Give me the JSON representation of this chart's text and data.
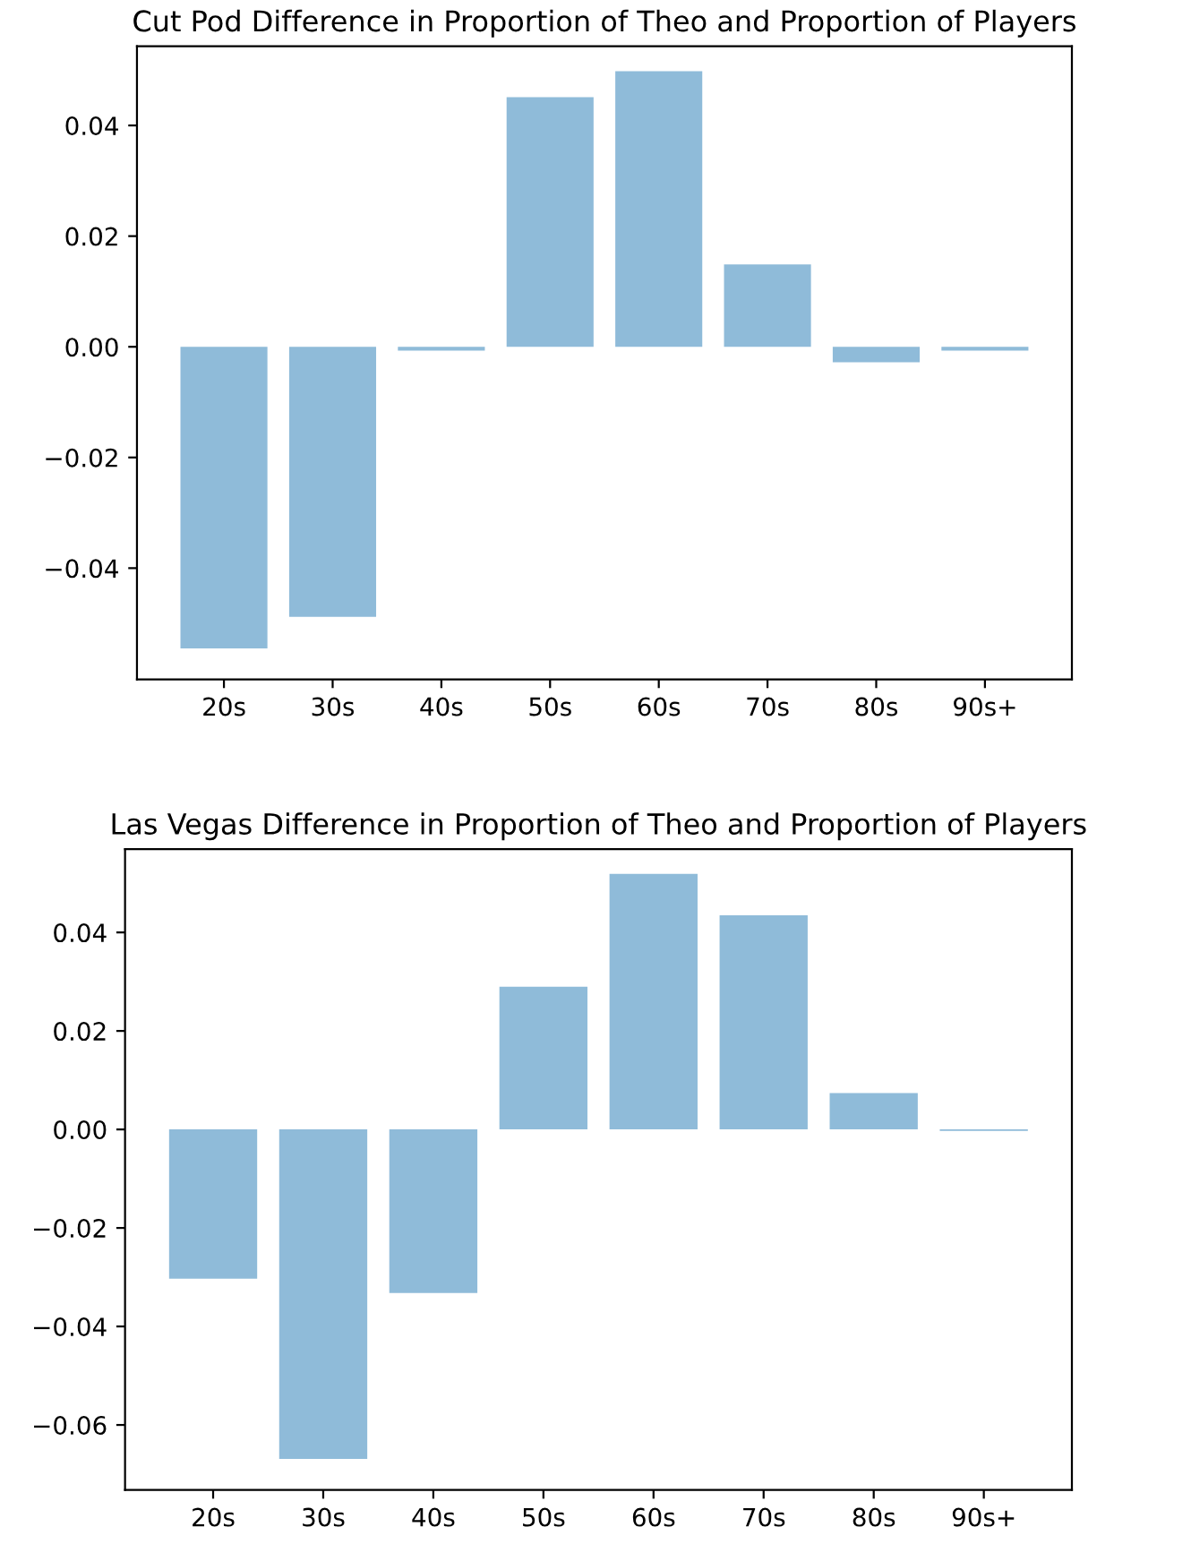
{
  "chart_data": [
    {
      "type": "bar",
      "title": "Cut Pod Difference in Proportion of Theo and Proportion of Players",
      "categories": [
        "20s",
        "30s",
        "40s",
        "50s",
        "60s",
        "70s",
        "80s",
        "90s+"
      ],
      "values": [
        -0.0545,
        -0.0488,
        -0.0007,
        0.0451,
        0.0498,
        0.0149,
        -0.0028,
        -0.0007
      ],
      "color": "#8fbbd9",
      "ylim": [
        -0.0601,
        0.0543
      ],
      "yticks": [
        {
          "value": -0.04,
          "label": "−0.04"
        },
        {
          "value": -0.02,
          "label": "−0.02"
        },
        {
          "value": 0,
          "label": "0.00"
        },
        {
          "value": 0.02,
          "label": "0.02"
        },
        {
          "value": 0.04,
          "label": "0.04"
        }
      ],
      "grid": false
    },
    {
      "type": "bar",
      "title": "Las Vegas Difference in Proportion of Theo and Proportion of Players",
      "categories": [
        "20s",
        "30s",
        "40s",
        "50s",
        "60s",
        "70s",
        "80s",
        "90s+"
      ],
      "values": [
        -0.0303,
        -0.0669,
        -0.0332,
        0.029,
        0.0519,
        0.0435,
        0.0074,
        -0.0003
      ],
      "color": "#8fbbd9",
      "ylim": [
        -0.0732,
        0.0569
      ],
      "yticks": [
        {
          "value": -0.06,
          "label": "−0.06"
        },
        {
          "value": -0.04,
          "label": "−0.04"
        },
        {
          "value": -0.02,
          "label": "−0.02"
        },
        {
          "value": 0,
          "label": "0.00"
        },
        {
          "value": 0.02,
          "label": "0.02"
        },
        {
          "value": 0.04,
          "label": "0.04"
        }
      ],
      "grid": false
    }
  ]
}
